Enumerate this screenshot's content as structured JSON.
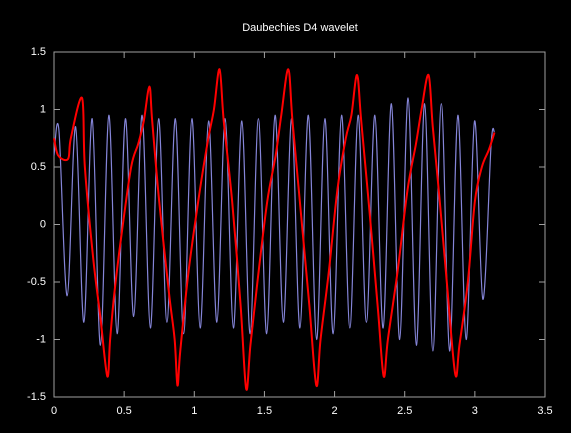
{
  "chart_data": {
    "type": "line",
    "title": "Daubechies D4 wavelet",
    "xlim": [
      0,
      3.5
    ],
    "ylim": [
      -1.5,
      1.5
    ],
    "xticks": [
      0,
      0.5,
      1,
      1.5,
      2,
      2.5,
      3,
      3.5
    ],
    "yticks": [
      -1.5,
      -1,
      -0.5,
      0,
      0.5,
      1,
      1.5
    ],
    "background": "#000000",
    "series": [
      {
        "color": "#8585d8",
        "x": [
          0,
          0.035,
          0.094,
          0.154,
          0.213,
          0.272,
          0.331,
          0.391,
          0.45,
          0.509,
          0.568,
          0.628,
          0.687,
          0.746,
          0.805,
          0.865,
          0.924,
          0.983,
          1.042,
          1.102,
          1.161,
          1.22,
          1.279,
          1.339,
          1.398,
          1.457,
          1.516,
          1.576,
          1.635,
          1.694,
          1.753,
          1.813,
          1.872,
          1.931,
          1.99,
          2.05,
          2.109,
          2.168,
          2.227,
          2.287,
          2.346,
          2.405,
          2.464,
          2.524,
          2.583,
          2.642,
          2.701,
          2.761,
          2.82,
          2.879,
          2.938,
          2.998,
          3.057,
          3.116,
          3.14
        ],
        "values": [
          0.6,
          0.82,
          -0.62,
          0.85,
          -0.85,
          0.92,
          -1.05,
          0.95,
          -0.95,
          0.92,
          -0.8,
          0.95,
          -0.9,
          0.92,
          -0.85,
          0.92,
          -0.95,
          0.92,
          -0.9,
          0.9,
          -0.85,
          0.92,
          -0.9,
          0.9,
          -0.95,
          0.92,
          -0.95,
          0.95,
          -0.85,
          0.92,
          -0.9,
          0.95,
          -1.0,
          0.92,
          -0.95,
          0.95,
          -0.9,
          0.95,
          -0.85,
          0.95,
          -0.9,
          1.05,
          -1.0,
          1.1,
          -1.05,
          1.05,
          -1.1,
          1.05,
          -1.1,
          0.95,
          -1.0,
          0.9,
          -0.65,
          0.7,
          0.8
        ]
      },
      {
        "color": "#ff0000",
        "x": [
          0,
          0.03,
          0.1,
          0.12,
          0.2,
          0.22,
          0.28,
          0.33,
          0.38,
          0.4,
          0.43,
          0.48,
          0.55,
          0.6,
          0.64,
          0.68,
          0.7,
          0.75,
          0.82,
          0.86,
          0.88,
          0.9,
          0.96,
          1.04,
          1.1,
          1.14,
          1.18,
          1.21,
          1.27,
          1.33,
          1.37,
          1.4,
          1.45,
          1.52,
          1.58,
          1.62,
          1.67,
          1.7,
          1.76,
          1.82,
          1.87,
          1.9,
          1.96,
          2.02,
          2.08,
          2.12,
          2.16,
          2.19,
          2.25,
          2.31,
          2.35,
          2.38,
          2.45,
          2.52,
          2.58,
          2.62,
          2.67,
          2.7,
          2.75,
          2.8,
          2.86,
          2.89,
          2.95,
          3.0,
          3.05,
          3.1,
          3.14
        ],
        "values": [
          0.75,
          0.6,
          0.57,
          0.75,
          1.1,
          0.5,
          -0.3,
          -0.8,
          -1.32,
          -1.0,
          -0.6,
          -0.1,
          0.5,
          0.7,
          0.9,
          1.2,
          0.9,
          0.2,
          -0.6,
          -1.0,
          -1.4,
          -1.1,
          -0.4,
          0.3,
          0.75,
          1.0,
          1.35,
          0.9,
          0.2,
          -0.7,
          -1.43,
          -1.05,
          -0.5,
          0.2,
          0.6,
          0.95,
          1.35,
          0.9,
          0.1,
          -0.7,
          -1.4,
          -1.0,
          -0.4,
          0.3,
          0.75,
          0.95,
          1.3,
          0.9,
          0.1,
          -0.75,
          -1.32,
          -1.0,
          -0.4,
          0.3,
          0.7,
          1.0,
          1.3,
          0.85,
          0.2,
          -0.5,
          -1.3,
          -1.05,
          -0.5,
          0.2,
          0.5,
          0.65,
          0.8
        ]
      }
    ]
  }
}
